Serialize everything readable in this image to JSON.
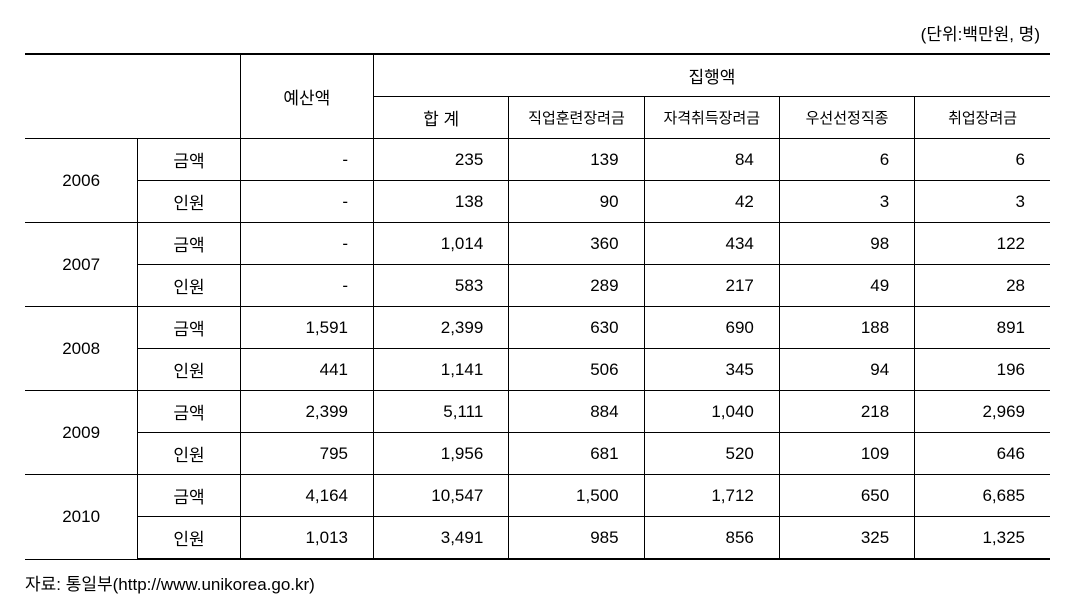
{
  "unit_label": "(단위:백만원, 명)",
  "headers": {
    "budget": "예산액",
    "execution": "집행액",
    "sub": {
      "total": "합 계",
      "training": "직업훈련장려금",
      "qualification": "자격취득장려금",
      "priority": "우선선정직종",
      "employment": "취업장려금"
    }
  },
  "row_types": {
    "amount": "금액",
    "persons": "인원"
  },
  "years": [
    "2006",
    "2007",
    "2008",
    "2009",
    "2010"
  ],
  "data": {
    "2006": {
      "amount": {
        "budget": "-",
        "total": "235",
        "training": "139",
        "qualification": "84",
        "priority": "6",
        "employment": "6"
      },
      "persons": {
        "budget": "-",
        "total": "138",
        "training": "90",
        "qualification": "42",
        "priority": "3",
        "employment": "3"
      }
    },
    "2007": {
      "amount": {
        "budget": "-",
        "total": "1,014",
        "training": "360",
        "qualification": "434",
        "priority": "98",
        "employment": "122"
      },
      "persons": {
        "budget": "-",
        "total": "583",
        "training": "289",
        "qualification": "217",
        "priority": "49",
        "employment": "28"
      }
    },
    "2008": {
      "amount": {
        "budget": "1,591",
        "total": "2,399",
        "training": "630",
        "qualification": "690",
        "priority": "188",
        "employment": "891"
      },
      "persons": {
        "budget": "441",
        "total": "1,141",
        "training": "506",
        "qualification": "345",
        "priority": "94",
        "employment": "196"
      }
    },
    "2009": {
      "amount": {
        "budget": "2,399",
        "total": "5,111",
        "training": "884",
        "qualification": "1,040",
        "priority": "218",
        "employment": "2,969"
      },
      "persons": {
        "budget": "795",
        "total": "1,956",
        "training": "681",
        "qualification": "520",
        "priority": "109",
        "employment": "646"
      }
    },
    "2010": {
      "amount": {
        "budget": "4,164",
        "total": "10,547",
        "training": "1,500",
        "qualification": "1,712",
        "priority": "650",
        "employment": "6,685"
      },
      "persons": {
        "budget": "1,013",
        "total": "3,491",
        "training": "985",
        "qualification": "856",
        "priority": "325",
        "employment": "1,325"
      }
    }
  },
  "source": "자료: 통일부(http://www.unikorea.go.kr)",
  "styling": {
    "background_color": "#ffffff",
    "border_color": "#000000",
    "text_color": "#000000",
    "font_family": "Malgun Gothic",
    "body_fontsize": 17,
    "sub_header_fontsize": 15,
    "col_widths": {
      "year": "11%",
      "type": "10%",
      "budget": "13%",
      "data": "13.2%"
    }
  }
}
